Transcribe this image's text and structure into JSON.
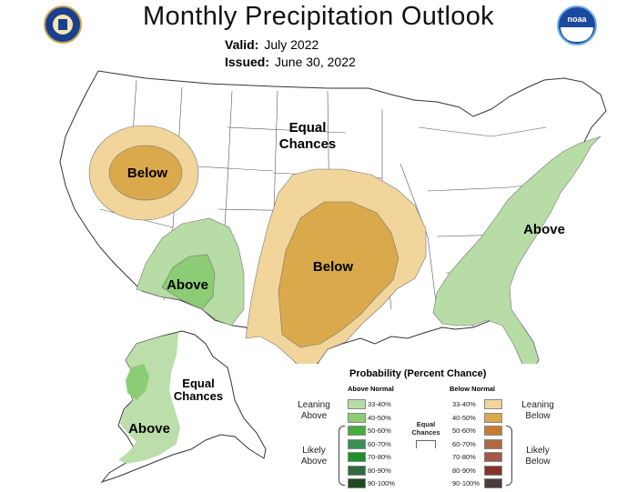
{
  "header": {
    "title": "Monthly Precipitation Outlook",
    "valid_label": "Valid:",
    "valid_value": "July 2022",
    "issued_label": "Issued:",
    "issued_value": "June 30, 2022"
  },
  "logos": {
    "left": "commerce-seal",
    "right": "noaa-logo",
    "right_text": "noaa"
  },
  "regions": [
    {
      "id": "northwest",
      "label": "Below",
      "category": "below",
      "level": "40-50%"
    },
    {
      "id": "southwest",
      "label": "Above",
      "category": "above",
      "level": "40-50%"
    },
    {
      "id": "central",
      "label": "Below",
      "category": "below",
      "level": "40-50%"
    },
    {
      "id": "east",
      "label": "Above",
      "category": "above",
      "level": "33-40%"
    },
    {
      "id": "alaska",
      "label": "Above",
      "category": "above",
      "level": "33-40%"
    }
  ],
  "map_labels": {
    "equal_chances": [
      "Equal",
      "Chances"
    ],
    "alaska_equal_chances": [
      "Equal",
      "Chances"
    ]
  },
  "legend": {
    "title": "Probability (Percent Chance)",
    "above_header": "Above Normal",
    "below_header": "Below Normal",
    "leaning_above": [
      "Leaning",
      "Above"
    ],
    "likely_above": [
      "Likely",
      "Above"
    ],
    "leaning_below": [
      "Leaning",
      "Below"
    ],
    "likely_below": [
      "Likely",
      "Below"
    ],
    "equal_chances": [
      "Equal",
      "Chances"
    ],
    "above_items": [
      {
        "label": "33-40%",
        "color": "#b7dca6"
      },
      {
        "label": "40-50%",
        "color": "#8ccc74"
      },
      {
        "label": "50-60%",
        "color": "#46ad3c"
      },
      {
        "label": "60-70%",
        "color": "#3a8f57"
      },
      {
        "label": "70-80%",
        "color": "#1d8f2c"
      },
      {
        "label": "80-90%",
        "color": "#2e6b3c"
      },
      {
        "label": "90-100%",
        "color": "#1f4a20"
      }
    ],
    "below_items": [
      {
        "label": "33-40%",
        "color": "#f1d59a"
      },
      {
        "label": "40-50%",
        "color": "#d9a94c"
      },
      {
        "label": "50-60%",
        "color": "#c87c2e"
      },
      {
        "label": "60-70%",
        "color": "#b06a3e"
      },
      {
        "label": "70-80%",
        "color": "#a3584b"
      },
      {
        "label": "80-90%",
        "color": "#84342a"
      },
      {
        "label": "90-100%",
        "color": "#4e3b3b"
      }
    ]
  }
}
